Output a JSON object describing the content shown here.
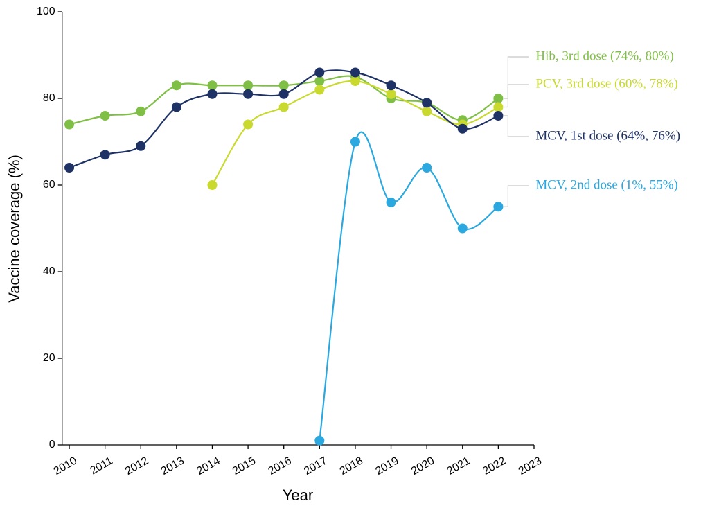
{
  "chart_data": {
    "type": "line",
    "x_label": "Year",
    "y_label": "Vaccine coverage (%)",
    "x": [
      2010,
      2011,
      2012,
      2013,
      2014,
      2015,
      2016,
      2017,
      2018,
      2019,
      2020,
      2021,
      2022
    ],
    "xlim": [
      2009.8,
      2023
    ],
    "xticks": [
      2010,
      2011,
      2012,
      2013,
      2014,
      2015,
      2016,
      2017,
      2018,
      2019,
      2020,
      2021,
      2022,
      2023
    ],
    "ylim": [
      0,
      100
    ],
    "yticks": [
      0,
      20,
      40,
      60,
      80,
      100
    ],
    "smooth": true,
    "series": [
      {
        "name": "Hib, 3rd dose (74%, 80%)",
        "color": "#80bf45",
        "values": [
          74,
          76,
          77,
          83,
          83,
          83,
          83,
          84,
          85,
          80,
          79,
          75,
          80
        ]
      },
      {
        "name": "PCV, 3rd dose (60%, 78%)",
        "color": "#c9d92e",
        "values": [
          null,
          null,
          null,
          null,
          60,
          74,
          78,
          82,
          84,
          81,
          77,
          74,
          78
        ]
      },
      {
        "name": "MCV, 1st dose (64%, 76%)",
        "color": "#1f3266",
        "values": [
          64,
          67,
          69,
          78,
          81,
          81,
          81,
          86,
          86,
          83,
          79,
          73,
          76
        ]
      },
      {
        "name": "MCV, 2nd dose (1%, 55%)",
        "color": "#2aa8df",
        "values": [
          null,
          null,
          null,
          null,
          null,
          null,
          null,
          1,
          70,
          56,
          64,
          50,
          55
        ]
      }
    ]
  }
}
